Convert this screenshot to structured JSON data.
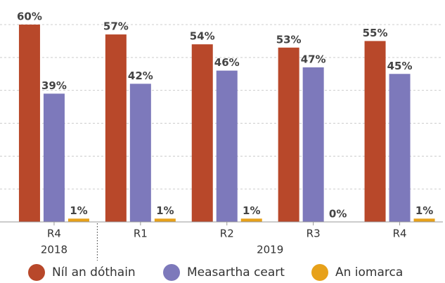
{
  "chart_data": {
    "type": "bar",
    "categories": [
      "R4",
      "R1",
      "R2",
      "R3",
      "R4"
    ],
    "years": [
      "2018",
      "2019"
    ],
    "series": [
      {
        "name": "Níl an dóthain",
        "color": "#b8482a",
        "values": [
          60,
          57,
          54,
          53,
          55
        ],
        "value_labels": [
          "60%",
          "57%",
          "54%",
          "53%",
          "55%"
        ]
      },
      {
        "name": "Measartha ceart",
        "color": "#7d79bb",
        "values": [
          39,
          42,
          46,
          47,
          45
        ],
        "value_labels": [
          "39%",
          "42%",
          "46%",
          "47%",
          "45%"
        ]
      },
      {
        "name": "An iomarca",
        "color": "#e7a11a",
        "values": [
          1,
          1,
          1,
          0,
          1
        ],
        "value_labels": [
          "1%",
          "1%",
          "1%",
          "0%",
          "1%"
        ]
      }
    ],
    "ylim": [
      0,
      60
    ],
    "yticks": [
      0,
      10,
      20,
      30,
      40,
      50,
      60
    ],
    "grid": true
  }
}
